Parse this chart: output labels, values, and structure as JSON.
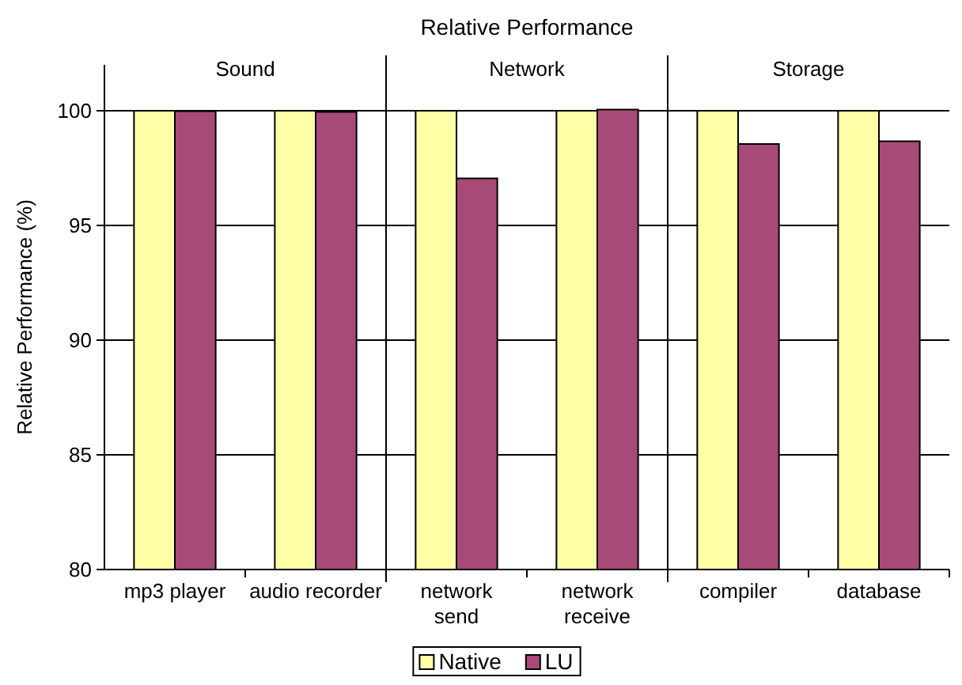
{
  "chart_data": {
    "type": "bar",
    "title": "Relative Performance",
    "ylabel": "Relative Performance (%)",
    "categories": [
      "mp3 player",
      "audio recorder",
      "network\nsend",
      "network\nreceive",
      "compiler",
      "database"
    ],
    "series": [
      {
        "name": "Native",
        "color": "#ffffa8",
        "values": [
          100,
          100,
          100,
          100,
          100,
          100
        ]
      },
      {
        "name": "LU",
        "color": "#a84a78",
        "values": [
          99.98,
          99.95,
          97.05,
          100.05,
          98.55,
          98.67
        ]
      }
    ],
    "annotations": [
      "Sound",
      "Network",
      "Storage"
    ],
    "ylim": [
      80,
      102
    ],
    "yticks": [
      80,
      85,
      90,
      95,
      100
    ],
    "grid": "y",
    "legend": "bottom"
  }
}
